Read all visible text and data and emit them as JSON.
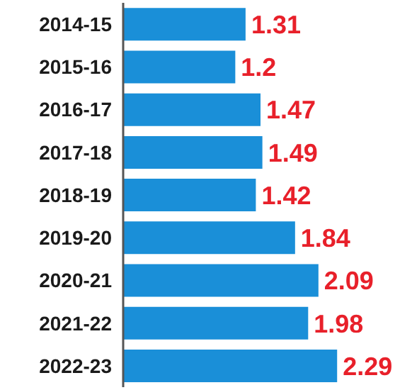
{
  "chart_data": {
    "type": "bar",
    "orientation": "horizontal",
    "categories": [
      "2014-15",
      "2015-16",
      "2016-17",
      "2017-18",
      "2018-19",
      "2019-20",
      "2020-21",
      "2021-22",
      "2022-23"
    ],
    "values": [
      1.31,
      1.2,
      1.47,
      1.49,
      1.42,
      1.84,
      2.09,
      1.98,
      2.29
    ],
    "color": "#1a8fd8",
    "data_labels": true,
    "tick_labels": "y",
    "grid": false,
    "legend": false
  }
}
